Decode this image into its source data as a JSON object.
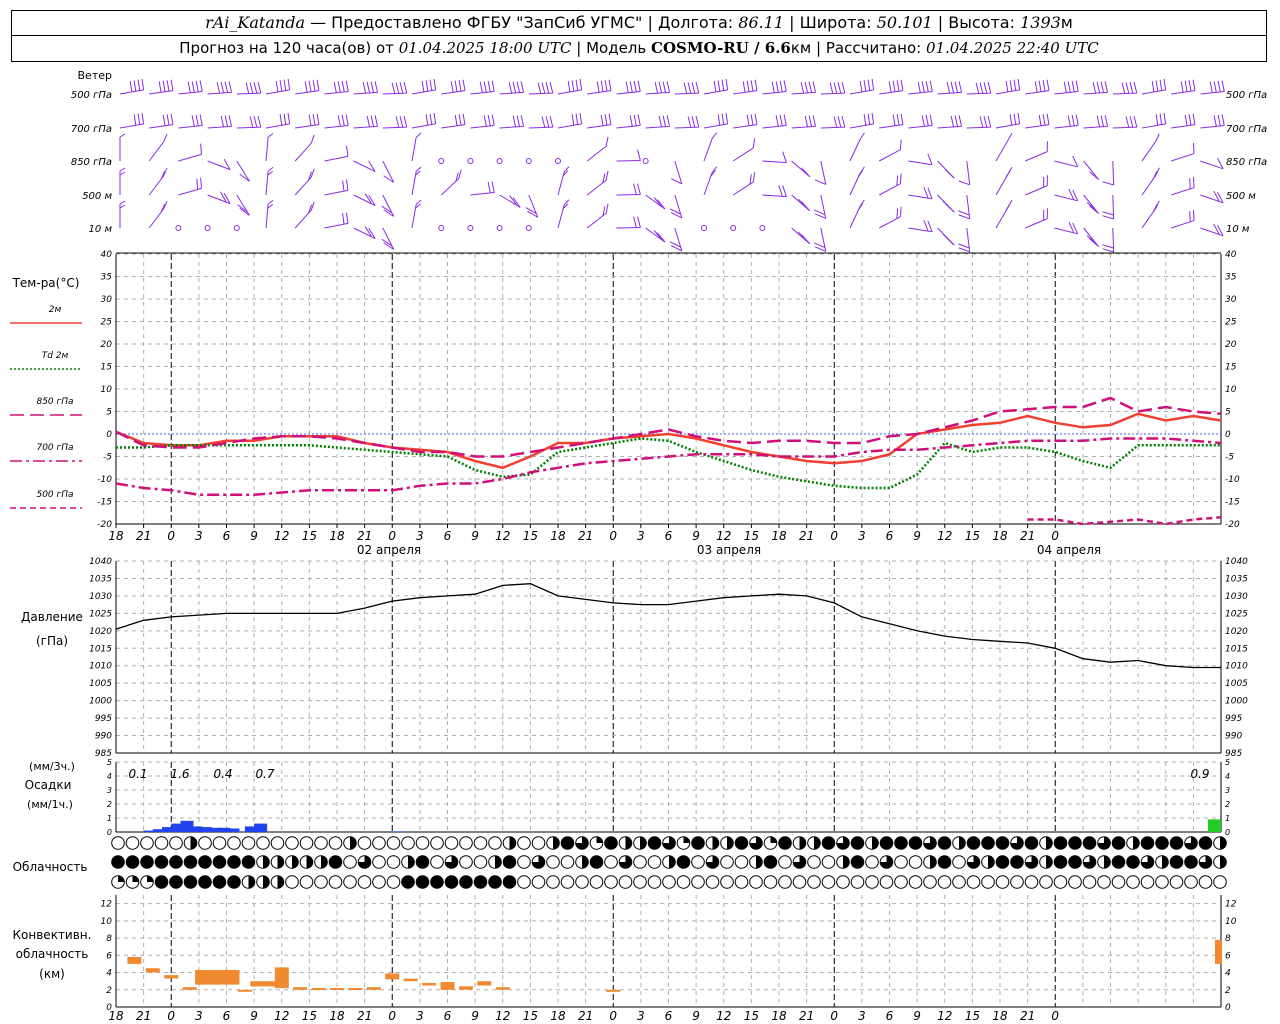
{
  "header": {
    "station": "rAi_Katanda",
    "dash": " — ",
    "provider": "Предоставлено ФГБУ \"ЗапСиб УГМС\"",
    "lon_label": "Долгота:",
    "lon_value": "86.11",
    "lat_label": "Широта:",
    "lat_value": "50.101",
    "alt_label": "Высота:",
    "alt_value": "1393",
    "alt_unit": "м",
    "forecast_prefix": "Прогноз на 120 часа(ов) от",
    "forecast_start": "01.04.2025 18:00 UTC",
    "model_label": "Модель",
    "model_name": "COSMO-RU / 6.6",
    "model_unit": "км",
    "computed_label": "Рассчитано:",
    "computed_time": "01.04.2025 22:40 UTC"
  },
  "wind": {
    "title": "Ветер",
    "levels": [
      "500 гПа",
      "700 гПа",
      "850 гПа",
      "500 м",
      "10 м"
    ],
    "color": "#8a2be2"
  },
  "temperature": {
    "title": "Тем-ра(°C)",
    "legend": [
      {
        "label": "2м",
        "color": "#f04030",
        "style": "solid"
      },
      {
        "label": "Td 2м",
        "color": "#008000",
        "style": "dotted"
      },
      {
        "label": "850 гПа",
        "color": "#d0107a",
        "style": "dash"
      },
      {
        "label": "700 гПа",
        "color": "#d0107a",
        "style": "dashdot"
      },
      {
        "label": "500 гПа",
        "color": "#d0107a",
        "style": "shortdash"
      }
    ],
    "yticks": [
      "40",
      "35",
      "30",
      "25",
      "20",
      "15",
      "10",
      "5",
      "0",
      "-5",
      "-10",
      "-15",
      "-20"
    ]
  },
  "xaxis": {
    "hours": [
      "18",
      "21",
      "0",
      "3",
      "6",
      "9",
      "12",
      "15",
      "18",
      "21",
      "0",
      "3",
      "6",
      "9",
      "12",
      "15",
      "18",
      "21",
      "0",
      "3",
      "6",
      "9",
      "12",
      "15",
      "18",
      "21",
      "0",
      "3",
      "6",
      "9",
      "12",
      "15",
      "18",
      "21",
      "0"
    ],
    "dates": [
      "02 апреля",
      "03 апреля",
      "04 апреля"
    ]
  },
  "pressure": {
    "title": "Давление",
    "unit": "(гПа)",
    "yticks": [
      "1040",
      "1035",
      "1030",
      "1025",
      "1020",
      "1015",
      "1010",
      "1005",
      "1000",
      "995",
      "990",
      "985"
    ]
  },
  "precip": {
    "unit3": "(мм/3ч.)",
    "title": "Осадки",
    "unit1": "(мм/1ч.)",
    "yticks": [
      "5",
      "4",
      "3",
      "2",
      "1",
      "0"
    ],
    "totals": [
      "0.1",
      "1.6",
      "0.4",
      "0.7",
      "0.9"
    ]
  },
  "cloud": {
    "title": "Облачность"
  },
  "convective": {
    "title1": "Конвективн.",
    "title2": "облачность",
    "unit": "(км)",
    "yticks": [
      "12",
      "10",
      "8",
      "6",
      "4",
      "2",
      "0"
    ]
  },
  "chart_data": [
    {
      "type": "line",
      "title": "Тем-ра(°C)",
      "x_hours_from_start": [
        0,
        3,
        6,
        9,
        12,
        15,
        18,
        21,
        24,
        27,
        30,
        33,
        36,
        39,
        42,
        45,
        48,
        51,
        54,
        57,
        60,
        63,
        66,
        69,
        72,
        75,
        78,
        81,
        84,
        87,
        90,
        93,
        96,
        99,
        102,
        105,
        108,
        111,
        114,
        117,
        120
      ],
      "ylim": [
        -20,
        40
      ],
      "series": [
        {
          "name": "2м",
          "values": [
            0.5,
            -2,
            -2.5,
            -2.5,
            -1.5,
            -1.5,
            -0.5,
            -0.5,
            -0.5,
            -2,
            -3,
            -3.5,
            -4,
            -6,
            -7.5,
            -5,
            -2,
            -2,
            -1,
            -0.5,
            0,
            -1,
            -2.5,
            -4,
            -5,
            -6,
            -6.5,
            -6,
            -4.5,
            0,
            1,
            2,
            2.5,
            4,
            2.5,
            1.5,
            2,
            4.5,
            3,
            4,
            3
          ]
        },
        {
          "name": "Td 2м",
          "values": [
            -3,
            -3,
            -2.5,
            -2.5,
            -2.5,
            -2.5,
            -2.5,
            -2.5,
            -3,
            -3.5,
            -4,
            -4.5,
            -5,
            -8,
            -9.5,
            -9,
            -4,
            -3,
            -2,
            -1,
            -1.5,
            -4,
            -6,
            -8,
            -9.5,
            -10.5,
            -11.5,
            -12,
            -12,
            -9,
            -2,
            -4,
            -3,
            -3,
            -4,
            -6,
            -7.5,
            -2.5,
            -2.5,
            -2.5,
            -2.5
          ]
        },
        {
          "name": "850 гПа",
          "values": [
            0.5,
            -2.5,
            -3,
            -3,
            -2,
            -1,
            -0.5,
            -0.5,
            -1,
            -2,
            -3,
            -4,
            -4,
            -5,
            -5,
            -4,
            -3,
            -2,
            -1,
            0,
            1,
            -0.5,
            -1.5,
            -2,
            -1.5,
            -1.5,
            -2,
            -2,
            -0.5,
            0,
            1.5,
            3,
            5,
            5.5,
            6,
            6,
            8,
            5,
            6,
            5,
            4.5
          ]
        },
        {
          "name": "700 гПа",
          "values": [
            -11,
            -12,
            -12.5,
            -13.5,
            -13.5,
            -13.5,
            -13,
            -12.5,
            -12.5,
            -12.5,
            -12.5,
            -11.5,
            -11,
            -11,
            -10,
            -8.5,
            -7.5,
            -6.5,
            -6,
            -5.5,
            -5,
            -4.5,
            -4.5,
            -4.5,
            -5,
            -5,
            -5,
            -4,
            -3.5,
            -3.5,
            -3,
            -2.5,
            -2,
            -1.5,
            -1.5,
            -1.5,
            -1,
            -1,
            -1,
            -1.5,
            -2
          ]
        },
        {
          "name": "500 гПа",
          "values": [
            null,
            null,
            null,
            null,
            null,
            null,
            null,
            null,
            null,
            null,
            null,
            null,
            null,
            null,
            null,
            null,
            null,
            null,
            null,
            null,
            null,
            null,
            null,
            null,
            null,
            null,
            null,
            null,
            null,
            null,
            null,
            null,
            null,
            -19,
            -19,
            -20,
            -19.5,
            -19,
            -20,
            -19,
            -18.5
          ]
        }
      ]
    },
    {
      "type": "line",
      "title": "Давление",
      "ylabel": "(гПа)",
      "x_hours_from_start": [
        0,
        3,
        6,
        9,
        12,
        15,
        18,
        21,
        24,
        27,
        30,
        33,
        36,
        39,
        42,
        45,
        48,
        51,
        54,
        57,
        60,
        63,
        66,
        69,
        72,
        75,
        78,
        81,
        84,
        87,
        90,
        93,
        96,
        99,
        102,
        105,
        108,
        111,
        114,
        117,
        120
      ],
      "ylim": [
        985,
        1040
      ],
      "series": [
        {
          "values": [
            1020.5,
            1023,
            1024,
            1024.5,
            1025,
            1025,
            1025,
            1025,
            1025,
            1026.5,
            1028.5,
            1029.5,
            1030,
            1030.5,
            1033,
            1033.5,
            1030,
            1029,
            1028,
            1027.5,
            1027.5,
            1028.5,
            1029.5,
            1030,
            1030.5,
            1030,
            1028,
            1024,
            1022,
            1020,
            1018.5,
            1017.5,
            1017,
            1016.5,
            1015,
            1012,
            1011,
            1011.5,
            1010,
            1009.5,
            1009.5
          ]
        }
      ]
    },
    {
      "type": "bar",
      "title": "Осадки",
      "ylabel": "(мм/1ч.)",
      "x_hours_from_start": [
        3,
        4,
        5,
        6,
        7,
        8,
        9,
        10,
        11,
        12,
        14,
        15,
        30,
        120
      ],
      "ylim": [
        0,
        5
      ],
      "series": [
        {
          "values": [
            0.1,
            0.2,
            0.35,
            0.6,
            0.8,
            0.4,
            0.35,
            0.3,
            0.3,
            0.25,
            0.4,
            0.6,
            0.05,
            0.9
          ]
        }
      ]
    },
    {
      "type": "bar",
      "title": "Конвективн. облачность",
      "ylabel": "(км)",
      "x_hours_from_start": [
        2,
        4,
        6,
        8,
        10,
        12,
        14,
        16,
        18,
        20,
        22,
        24,
        26,
        28,
        30,
        32,
        34,
        36,
        38,
        40,
        42,
        54,
        120
      ],
      "ylim": [
        0,
        13
      ],
      "series": [
        {
          "name": "base",
          "values": [
            5,
            4,
            3.3,
            2,
            2.6,
            2.6,
            1.8,
            2.4,
            2.2,
            2,
            2,
            2,
            2,
            2,
            3.2,
            3,
            2.5,
            2,
            2,
            2.5,
            2,
            1.8,
            5
          ]
        },
        {
          "name": "top",
          "values": [
            5.8,
            4.5,
            3.7,
            2.3,
            4.3,
            4.3,
            2,
            3,
            4.6,
            2.3,
            2.2,
            2.2,
            2.2,
            2.3,
            3.9,
            3.3,
            2.8,
            2.9,
            2.4,
            3,
            2.3,
            2,
            7.8
          ]
        }
      ]
    }
  ]
}
